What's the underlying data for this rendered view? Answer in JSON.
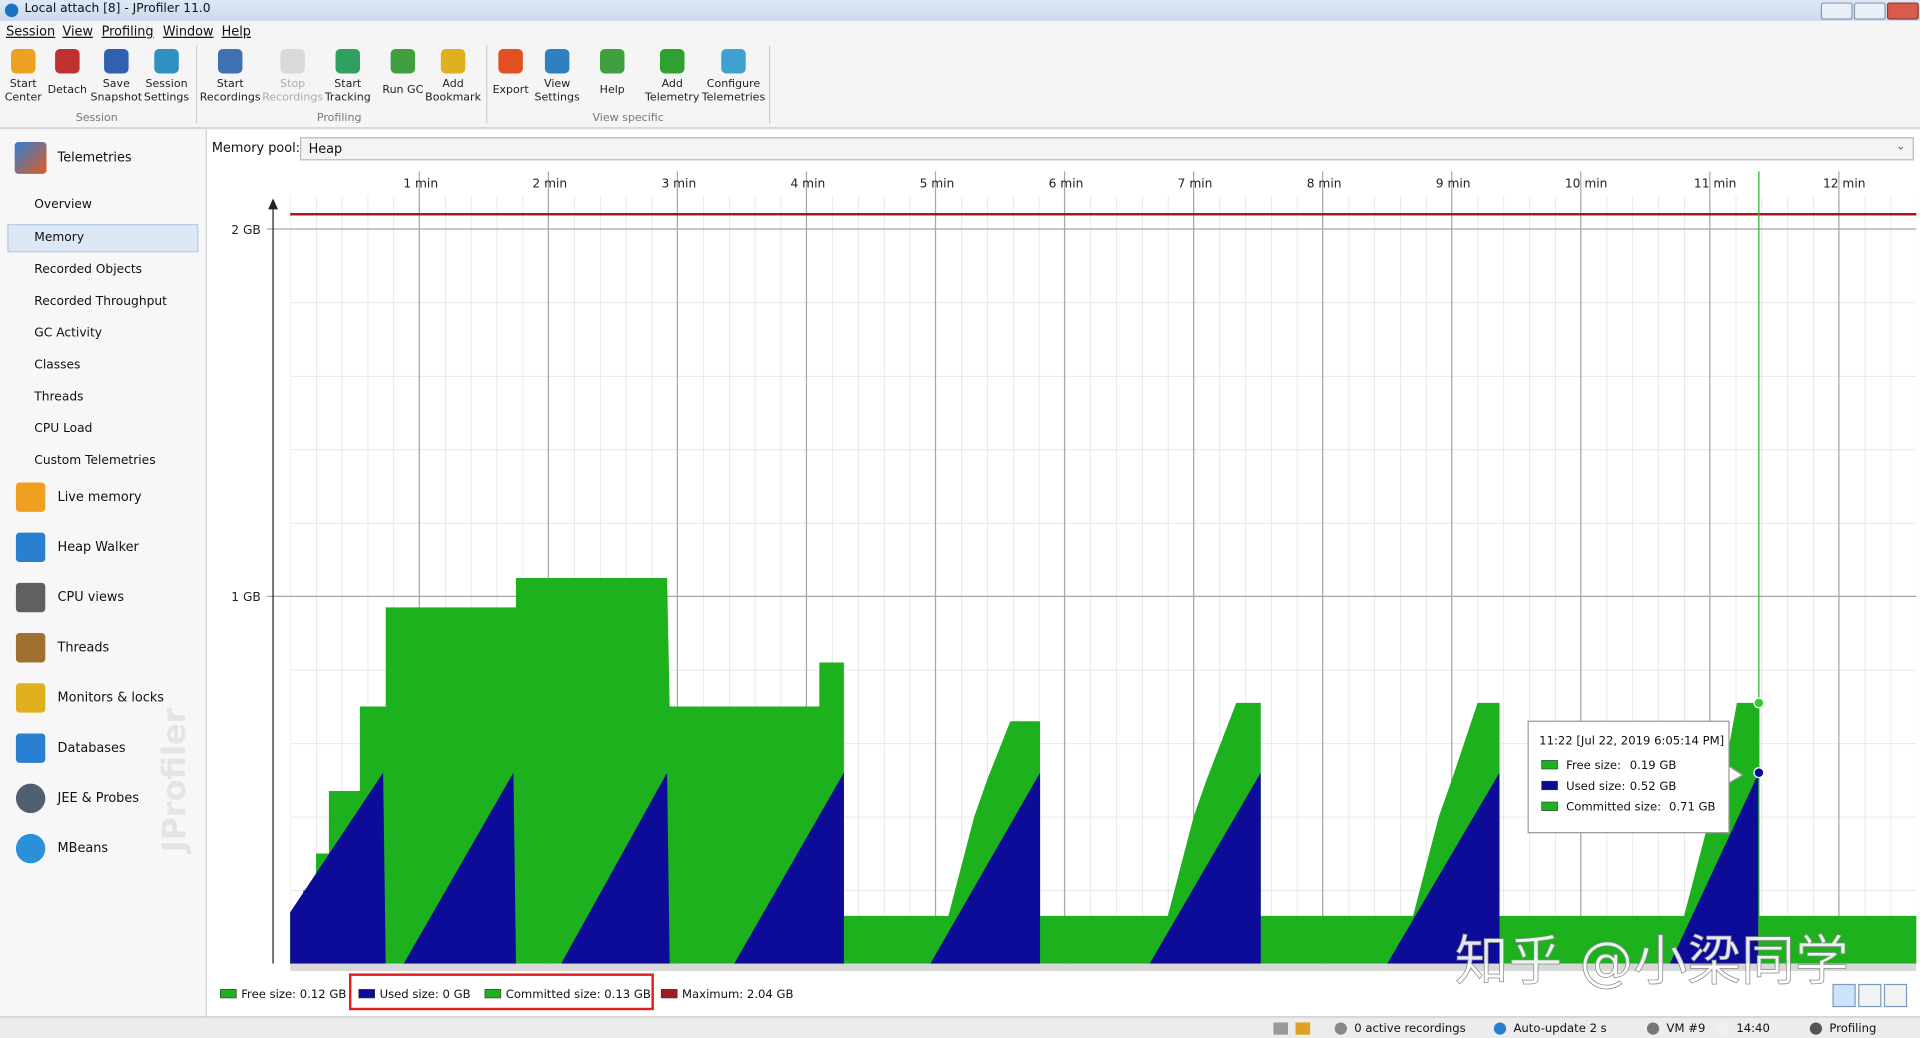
{
  "window": {
    "title": "Local attach [8] - JProfiler 11.0"
  },
  "menu": [
    "Session",
    "View",
    "Profiling",
    "Window",
    "Help"
  ],
  "toolbar": {
    "groups": [
      {
        "label": "Session",
        "items": [
          [
            "Start",
            "Center"
          ],
          [
            "Detach"
          ],
          [
            "Save",
            "Snapshot"
          ],
          [
            "Session",
            "Settings"
          ]
        ]
      },
      {
        "label": "Profiling",
        "items": [
          [
            "Start",
            "Recordings"
          ],
          [
            "Stop",
            "Recordings"
          ],
          [
            "Start",
            "Tracking"
          ],
          [
            "Run GC"
          ],
          [
            "Add",
            "Bookmark"
          ]
        ]
      },
      {
        "label": "View specific",
        "items": [
          [
            "Export"
          ],
          [
            "View",
            "Settings"
          ],
          [
            "Help"
          ],
          [
            "Add",
            "Telemetry"
          ],
          [
            "Configure",
            "Telemetries"
          ]
        ]
      }
    ]
  },
  "sidebar": {
    "telemetries": "Telemetries",
    "telemetry_views": [
      "Overview",
      "Memory",
      "Recorded Objects",
      "Recorded Throughput",
      "GC Activity",
      "Classes",
      "Threads",
      "CPU Load",
      "Custom Telemetries"
    ],
    "sections": [
      "Live memory",
      "Heap Walker",
      "CPU views",
      "Threads",
      "Monitors & locks",
      "Databases",
      "JEE & Probes",
      "MBeans"
    ],
    "watermark": "JProfiler"
  },
  "memory_pool": {
    "label": "Memory pool:",
    "value": "Heap"
  },
  "chart": {
    "xlim": [
      0,
      12.6
    ],
    "ylim": [
      0,
      2.07
    ],
    "xticks": [
      {
        "value": 1,
        "label": "1 min"
      },
      {
        "value": 2,
        "label": "2 min"
      },
      {
        "value": 3,
        "label": "3 min"
      },
      {
        "value": 4,
        "label": "4 min"
      },
      {
        "value": 5,
        "label": "5 min"
      },
      {
        "value": 6,
        "label": "6 min"
      },
      {
        "value": 7,
        "label": "7 min"
      },
      {
        "value": 8,
        "label": "8 min"
      },
      {
        "value": 9,
        "label": "9 min"
      },
      {
        "value": 10,
        "label": "10 min"
      },
      {
        "value": 11,
        "label": "11 min"
      },
      {
        "value": 12,
        "label": "12 min"
      }
    ],
    "yticks": [
      {
        "value": 1,
        "label": "1 GB"
      },
      {
        "value": 2,
        "label": "2 GB"
      }
    ],
    "maximum": 2.04,
    "maximum_color": "#a01c1c",
    "series": [
      {
        "name": "Committed size",
        "color": "#1db21d",
        "x": [
          0,
          0.1,
          0.1,
          0.2,
          0.2,
          0.3,
          0.3,
          0.54,
          0.54,
          0.74,
          0.74,
          1.75,
          1.75,
          2.92,
          2.94,
          4.1,
          4.1,
          4.29,
          4.29,
          5.1,
          5.3,
          5.4,
          5.58,
          5.81,
          5.81,
          6.8,
          7.0,
          7.1,
          7.33,
          7.52,
          7.52,
          8.7,
          8.9,
          9.0,
          9.2,
          9.37,
          9.37,
          10.8,
          11.0,
          11.1,
          11.21,
          11.38,
          11.38,
          12.6
        ],
        "values": [
          0.14,
          0.14,
          0.2,
          0.2,
          0.3,
          0.3,
          0.47,
          0.47,
          0.7,
          0.7,
          0.97,
          0.97,
          1.05,
          1.05,
          0.7,
          0.7,
          0.82,
          0.82,
          0.13,
          0.13,
          0.4,
          0.5,
          0.66,
          0.66,
          0.13,
          0.13,
          0.4,
          0.5,
          0.71,
          0.71,
          0.13,
          0.13,
          0.4,
          0.5,
          0.71,
          0.71,
          0.13,
          0.13,
          0.4,
          0.5,
          0.71,
          0.71,
          0.13,
          0.13
        ]
      },
      {
        "name": "Used size",
        "color": "#0c0c98",
        "x": [
          0,
          0.72,
          0.74,
          0.88,
          1.73,
          1.75,
          2.1,
          2.92,
          2.94,
          3.44,
          4.29,
          4.29,
          4.96,
          5.81,
          5.81,
          6.66,
          7.52,
          7.52,
          8.5,
          9.37,
          9.37,
          10.69,
          11.38,
          11.38,
          12.6
        ],
        "values": [
          0.14,
          0.52,
          0,
          0,
          0.52,
          0,
          0,
          0.52,
          0,
          0,
          0.52,
          0,
          0,
          0.52,
          0,
          0,
          0.52,
          0,
          0,
          0.52,
          0,
          0,
          0.52,
          0,
          0
        ]
      }
    ],
    "bookmark_x": 11.38
  },
  "legend": [
    {
      "label": "Free size: 0.12 GB",
      "color": "#1db21d"
    },
    {
      "label": "Used size: 0 GB",
      "color": "#0c0c98"
    },
    {
      "label": "Committed size: 0.13 GB",
      "color": "#1db21d"
    },
    {
      "label": "Maximum: 2.04 GB",
      "color": "#a01c1c"
    }
  ],
  "tooltip": {
    "time": "11:22 [Jul 22, 2019 6:05:14 PM]",
    "rows": [
      {
        "label": "Free size:",
        "value": "0.19 GB"
      },
      {
        "label": "Used size:",
        "value": "0.52 GB"
      },
      {
        "label": "Committed size:",
        "value": "0.71 GB"
      }
    ]
  },
  "watermark": "知乎 @小梁同学",
  "status_bar": [
    "0 active recordings",
    "Auto-update 2 s",
    "VM #9",
    "14:40",
    "Profiling"
  ]
}
